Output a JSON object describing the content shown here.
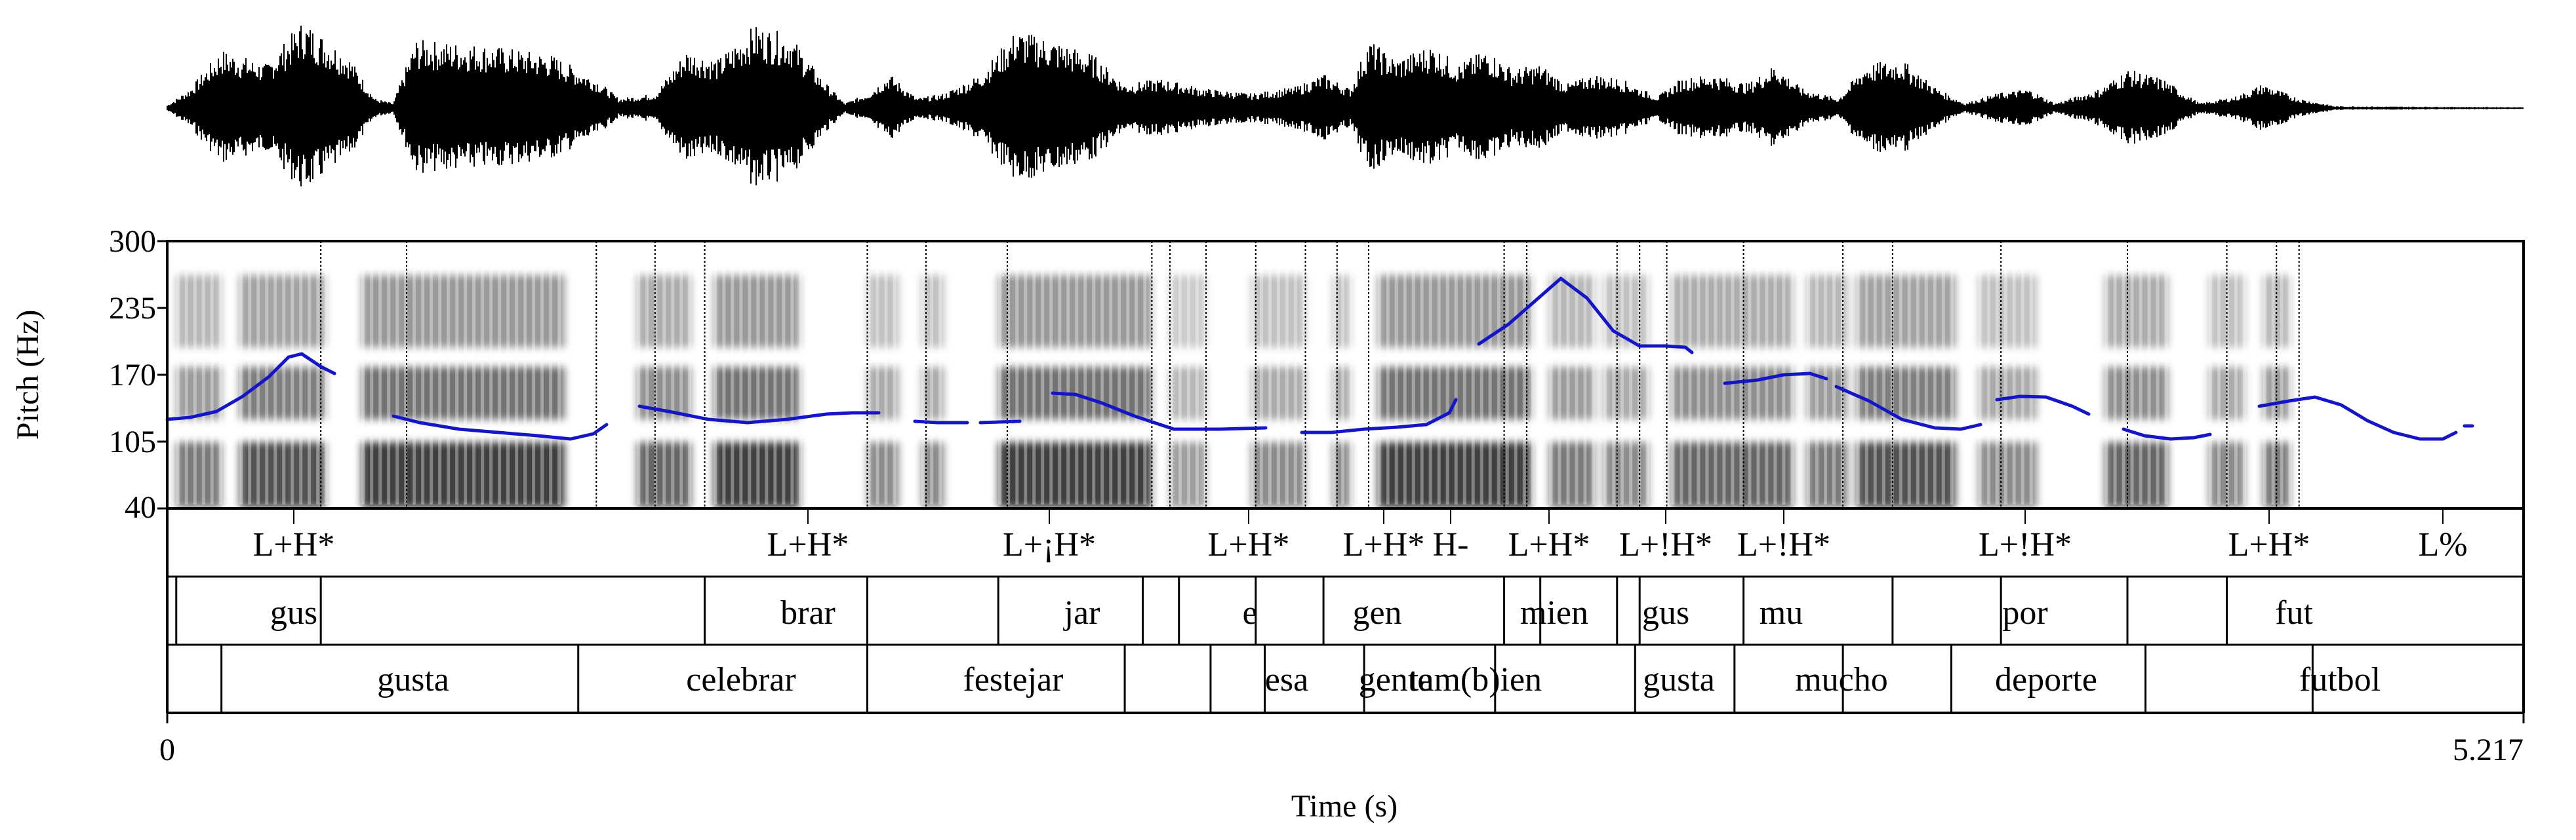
{
  "axes": {
    "pitch_label": "Pitch (Hz)",
    "pitch_ticks": [
      "300",
      "235",
      "170",
      "105",
      "40"
    ],
    "time_label": "Time (s)",
    "time_start": "0",
    "time_end": "5.217"
  },
  "chart_data": {
    "type": "line",
    "title": "",
    "xlabel": "Time (s)",
    "ylabel": "Pitch (Hz)",
    "xlim": [
      0,
      5.217
    ],
    "ylim": [
      40,
      300
    ],
    "yticks": [
      300,
      235,
      170,
      105,
      40
    ],
    "series": [
      {
        "values": [
          [
            0.0,
            128
          ],
          [
            0.15,
            136
          ],
          [
            0.25,
            153
          ],
          [
            0.33,
            178
          ],
          [
            0.42,
            186
          ],
          [
            0.48,
            178
          ],
          [
            0.53,
            168
          ]
        ]
      },
      {
        "values": [
          [
            0.46,
            168
          ],
          [
            0.53,
            167
          ]
        ]
      },
      {
        "values": [
          [
            0.46,
            168
          ],
          [
            0.46,
            168
          ]
        ]
      }
    ]
  },
  "tones": [
    {
      "t": 0.26,
      "label": "L+H*"
    },
    {
      "t": 1.3,
      "label": "L+H*"
    },
    {
      "t": 1.84,
      "label": "L+¡H*"
    },
    {
      "t": 2.2,
      "label": "L+H*"
    },
    {
      "t": 2.46,
      "label": "L+H*"
    },
    {
      "t": 2.59,
      "label": "H-"
    },
    {
      "t": 2.81,
      "label": "L+H*"
    },
    {
      "t": 3.04,
      "label": "L+!H*"
    },
    {
      "t": 3.26,
      "label": "L+!H*"
    },
    {
      "t": 3.8,
      "label": "L+!H*"
    },
    {
      "t": 4.34,
      "label": "L+H*"
    },
    {
      "t": 4.67,
      "label": "L%"
    }
  ],
  "syllables": [
    {
      "t": 0.26,
      "label": "gus"
    },
    {
      "t": 1.3,
      "label": "brar"
    },
    {
      "t": 1.84,
      "label": "jar"
    },
    {
      "t": 2.2,
      "label": "e"
    },
    {
      "t": 2.46,
      "label": "gen"
    },
    {
      "t": 2.81,
      "label": "mien"
    },
    {
      "t": 2.99,
      "label": "gus"
    },
    {
      "t": 3.26,
      "label": "mu"
    },
    {
      "t": 3.82,
      "label": "por"
    },
    {
      "t": 4.34,
      "label": "fut"
    }
  ],
  "words": [
    {
      "t": 0.5,
      "label": "gusta"
    },
    {
      "t": 1.16,
      "label": "celebrar"
    },
    {
      "t": 1.72,
      "label": "festejar"
    },
    {
      "t": 2.28,
      "label": "esa"
    },
    {
      "t": 2.49,
      "label": "gente"
    },
    {
      "t": 2.75,
      "label": "tam(b)ien"
    },
    {
      "t": 3.09,
      "label": "gusta"
    },
    {
      "t": 3.33,
      "label": "mucho"
    },
    {
      "t": 3.83,
      "label": "deporte"
    },
    {
      "t": 4.47,
      "label": "futbol"
    }
  ]
}
